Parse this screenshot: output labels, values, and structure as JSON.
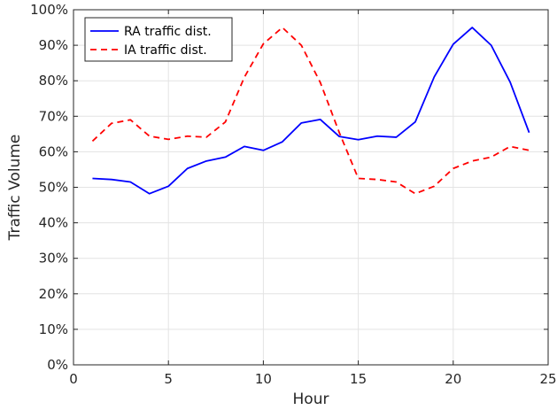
{
  "chart_data": {
    "type": "line",
    "title": "",
    "xlabel": "Hour",
    "ylabel": "Traffic Volume",
    "xlim": [
      0,
      25
    ],
    "ylim": [
      0,
      100
    ],
    "x_ticks": [
      0,
      5,
      10,
      15,
      20,
      25
    ],
    "y_ticks": [
      0,
      10,
      20,
      30,
      40,
      50,
      60,
      70,
      80,
      90,
      100
    ],
    "y_tick_format": "percent",
    "grid": true,
    "legend_position": "top-left",
    "series": [
      {
        "name": "RA traffic dist.",
        "color": "#0000ff",
        "line_style": "solid",
        "x": [
          1,
          2,
          3,
          4,
          5,
          6,
          7,
          8,
          9,
          10,
          11,
          12,
          13,
          14,
          15,
          16,
          17,
          18,
          19,
          20,
          21,
          22,
          23,
          24
        ],
        "values": [
          52.5,
          52.2,
          51.5,
          48.2,
          50.3,
          55.3,
          57.4,
          58.5,
          61.5,
          60.4,
          62.8,
          68.1,
          69.1,
          64.3,
          63.4,
          64.4,
          64.1,
          68.4,
          81.1,
          90.3,
          95.0,
          90.0,
          79.6,
          65.4
        ]
      },
      {
        "name": "IA traffic dist.",
        "color": "#ff0000",
        "line_style": "dashed",
        "x": [
          1,
          2,
          3,
          4,
          5,
          6,
          7,
          8,
          9,
          10,
          11,
          12,
          13,
          14,
          15,
          16,
          17,
          18,
          19,
          20,
          21,
          22,
          23,
          24
        ],
        "values": [
          63.0,
          68.0,
          69.0,
          64.4,
          63.5,
          64.4,
          64.1,
          68.4,
          81.0,
          90.4,
          95.0,
          90.0,
          79.5,
          65.4,
          52.5,
          52.2,
          51.5,
          48.2,
          50.3,
          55.3,
          57.4,
          58.5,
          61.5,
          60.4
        ]
      }
    ]
  }
}
